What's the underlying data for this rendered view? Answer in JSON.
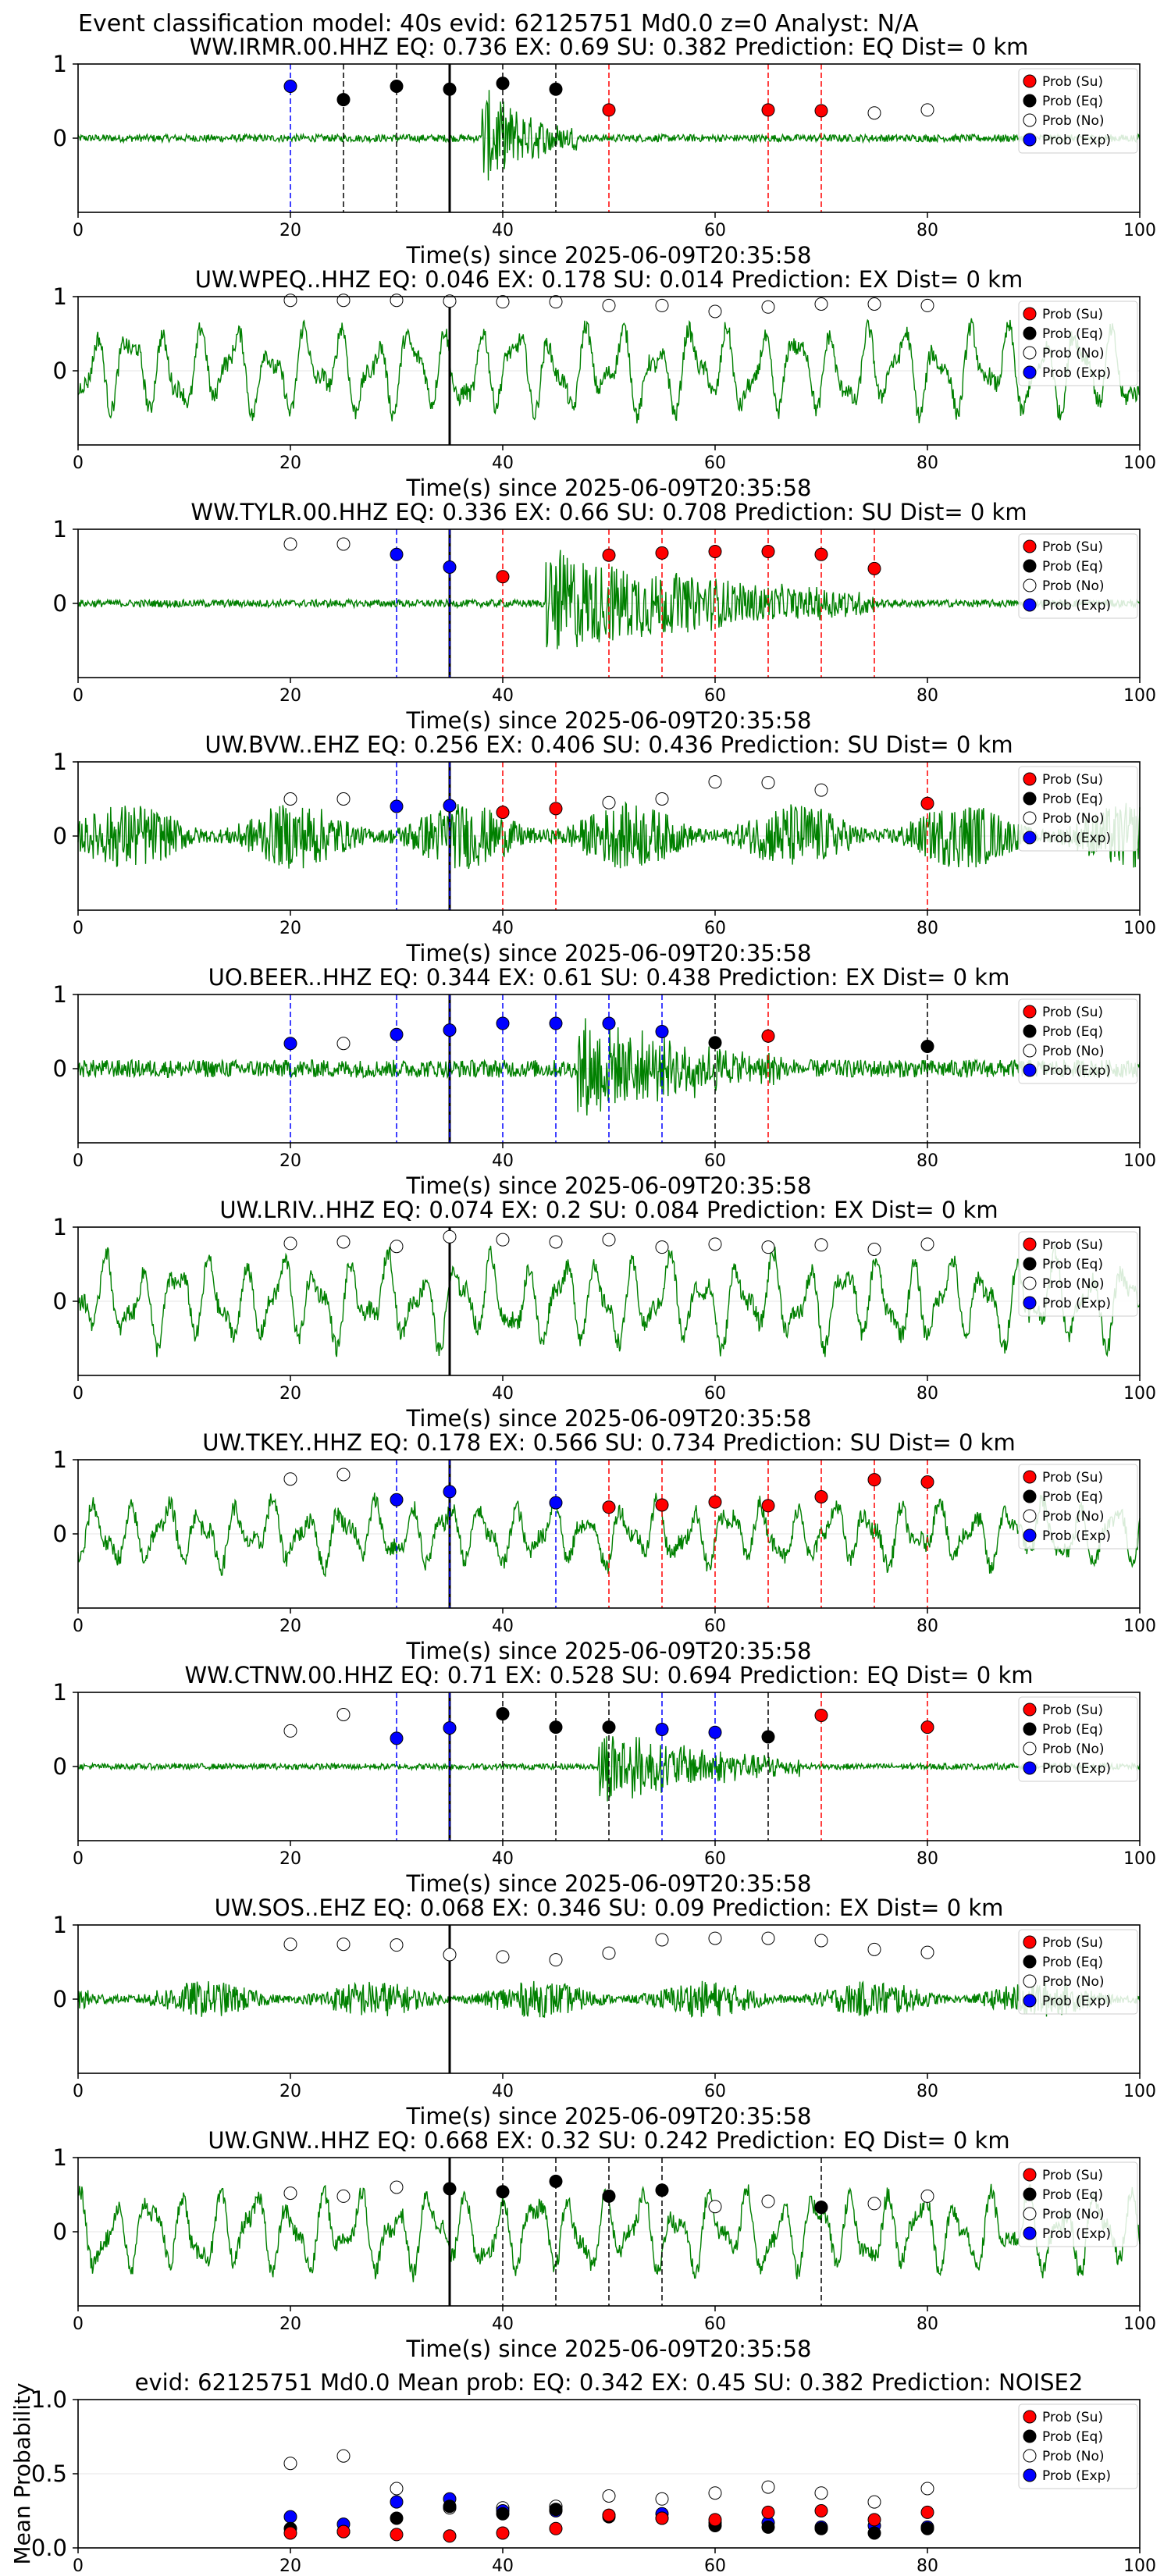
{
  "figure_title": "Event classification model: 40s evid: 62125751 Md0.0 z=0 Analyst: N/A",
  "legend_labels": [
    "Prob (Su)",
    "Prob (Eq)",
    "Prob (No)",
    "Prob (Exp)"
  ],
  "colors": {
    "su": "#ff0000",
    "eq": "#000000",
    "no": "#ffffff",
    "exp": "#0000ff",
    "trace": "#008000",
    "su_line": "#ff0000",
    "eq_line": "#000000",
    "exp_line": "#0000ff"
  },
  "chart_data": [
    {
      "type": "scatter",
      "station": "WW.IRMR.00.HHZ",
      "title": "WW.IRMR.00.HHZ   EQ: 0.736  EX: 0.69  SU: 0.382   Prediction: EQ    Dist= 0 km",
      "xlabel": "Time(s) since 2025-06-09T20:35:58",
      "xlim": [
        0,
        100
      ],
      "ylim": [
        -1,
        1
      ],
      "xticks": [
        0,
        20,
        40,
        60,
        80,
        100
      ],
      "yticks": [
        0,
        1
      ],
      "pick_time": 35,
      "trace": {
        "style": "burst",
        "amp": 0.05,
        "onset": 38,
        "burst_end": 47,
        "burst_amp": 0.7
      },
      "points": [
        {
          "t": 20,
          "c": "exp",
          "p": 0.7
        },
        {
          "t": 25,
          "c": "eq",
          "p": 0.52
        },
        {
          "t": 30,
          "c": "eq",
          "p": 0.7
        },
        {
          "t": 35,
          "c": "eq",
          "p": 0.66
        },
        {
          "t": 40,
          "c": "eq",
          "p": 0.74
        },
        {
          "t": 45,
          "c": "eq",
          "p": 0.66
        },
        {
          "t": 50,
          "c": "su",
          "p": 0.38
        },
        {
          "t": 65,
          "c": "su",
          "p": 0.38
        },
        {
          "t": 70,
          "c": "su",
          "p": 0.37
        },
        {
          "t": 75,
          "c": "no",
          "p": 0.34
        },
        {
          "t": 80,
          "c": "no",
          "p": 0.38
        }
      ]
    },
    {
      "type": "scatter",
      "station": "UW.WPEQ..HHZ",
      "title": "UW.WPEQ..HHZ   EQ: 0.046  EX: 0.178  SU: 0.014   Prediction: EX    Dist= 0 km",
      "xlabel": "Time(s) since 2025-06-09T20:35:58",
      "xlim": [
        0,
        100
      ],
      "ylim": [
        -1,
        1
      ],
      "xticks": [
        0,
        20,
        40,
        60,
        80,
        100
      ],
      "yticks": [
        0,
        1
      ],
      "pick_time": 35,
      "trace": {
        "style": "swell",
        "amp": 0.7
      },
      "points": [
        {
          "t": 20,
          "c": "no",
          "p": 0.95
        },
        {
          "t": 25,
          "c": "no",
          "p": 0.95
        },
        {
          "t": 30,
          "c": "no",
          "p": 0.95
        },
        {
          "t": 35,
          "c": "no",
          "p": 0.94
        },
        {
          "t": 40,
          "c": "no",
          "p": 0.93
        },
        {
          "t": 45,
          "c": "no",
          "p": 0.93
        },
        {
          "t": 50,
          "c": "no",
          "p": 0.88
        },
        {
          "t": 55,
          "c": "no",
          "p": 0.88
        },
        {
          "t": 60,
          "c": "no",
          "p": 0.8
        },
        {
          "t": 65,
          "c": "no",
          "p": 0.86
        },
        {
          "t": 70,
          "c": "no",
          "p": 0.9
        },
        {
          "t": 75,
          "c": "no",
          "p": 0.9
        },
        {
          "t": 80,
          "c": "no",
          "p": 0.88
        }
      ]
    },
    {
      "type": "scatter",
      "station": "WW.TYLR.00.HHZ",
      "title": "WW.TYLR.00.HHZ   EQ: 0.336  EX: 0.66  SU: 0.708   Prediction: SU    Dist= 0 km",
      "xlabel": "Time(s) since 2025-06-09T20:35:58",
      "xlim": [
        0,
        100
      ],
      "ylim": [
        -1,
        1
      ],
      "xticks": [
        0,
        20,
        40,
        60,
        80,
        100
      ],
      "yticks": [
        0,
        1
      ],
      "pick_time": 35,
      "trace": {
        "style": "burst",
        "amp": 0.05,
        "onset": 44,
        "burst_end": 75,
        "burst_amp": 0.75
      },
      "points": [
        {
          "t": 20,
          "c": "no",
          "p": 0.8
        },
        {
          "t": 25,
          "c": "no",
          "p": 0.8
        },
        {
          "t": 30,
          "c": "exp",
          "p": 0.66
        },
        {
          "t": 35,
          "c": "exp",
          "p": 0.49
        },
        {
          "t": 40,
          "c": "su",
          "p": 0.36
        },
        {
          "t": 50,
          "c": "su",
          "p": 0.65
        },
        {
          "t": 55,
          "c": "su",
          "p": 0.68
        },
        {
          "t": 60,
          "c": "su",
          "p": 0.7
        },
        {
          "t": 65,
          "c": "su",
          "p": 0.7
        },
        {
          "t": 70,
          "c": "su",
          "p": 0.66
        },
        {
          "t": 75,
          "c": "su",
          "p": 0.47
        }
      ]
    },
    {
      "type": "scatter",
      "station": "UW.BVW..EHZ",
      "title": "UW.BVW..EHZ   EQ: 0.256  EX: 0.406  SU: 0.436   Prediction: SU    Dist= 0 km",
      "xlabel": "Time(s) since 2025-06-09T20:35:58",
      "xlim": [
        0,
        100
      ],
      "ylim": [
        -1,
        1
      ],
      "xticks": [
        0,
        20,
        40,
        60,
        80,
        100
      ],
      "yticks": [
        0,
        1
      ],
      "pick_time": 35,
      "trace": {
        "style": "noise",
        "amp": 0.45
      },
      "points": [
        {
          "t": 20,
          "c": "no",
          "p": 0.5
        },
        {
          "t": 25,
          "c": "no",
          "p": 0.5
        },
        {
          "t": 30,
          "c": "exp",
          "p": 0.4
        },
        {
          "t": 35,
          "c": "exp",
          "p": 0.41
        },
        {
          "t": 40,
          "c": "su",
          "p": 0.32
        },
        {
          "t": 45,
          "c": "su",
          "p": 0.37
        },
        {
          "t": 50,
          "c": "no",
          "p": 0.45
        },
        {
          "t": 55,
          "c": "no",
          "p": 0.5
        },
        {
          "t": 60,
          "c": "no",
          "p": 0.73
        },
        {
          "t": 65,
          "c": "no",
          "p": 0.72
        },
        {
          "t": 70,
          "c": "no",
          "p": 0.62
        },
        {
          "t": 80,
          "c": "su",
          "p": 0.44
        }
      ]
    },
    {
      "type": "scatter",
      "station": "UO.BEER..HHZ",
      "title": "UO.BEER..HHZ   EQ: 0.344  EX: 0.61  SU: 0.438   Prediction: EX    Dist= 0 km",
      "xlabel": "Time(s) since 2025-06-09T20:35:58",
      "xlim": [
        0,
        100
      ],
      "ylim": [
        -1,
        1
      ],
      "xticks": [
        0,
        20,
        40,
        60,
        80,
        100
      ],
      "yticks": [
        0,
        1
      ],
      "pick_time": 35,
      "trace": {
        "style": "burst",
        "amp": 0.12,
        "onset": 47,
        "burst_end": 68,
        "burst_amp": 0.7
      },
      "points": [
        {
          "t": 20,
          "c": "exp",
          "p": 0.34
        },
        {
          "t": 25,
          "c": "no",
          "p": 0.34
        },
        {
          "t": 30,
          "c": "exp",
          "p": 0.46
        },
        {
          "t": 35,
          "c": "exp",
          "p": 0.52
        },
        {
          "t": 40,
          "c": "exp",
          "p": 0.61
        },
        {
          "t": 45,
          "c": "exp",
          "p": 0.61
        },
        {
          "t": 50,
          "c": "exp",
          "p": 0.61
        },
        {
          "t": 55,
          "c": "exp",
          "p": 0.5
        },
        {
          "t": 60,
          "c": "eq",
          "p": 0.35
        },
        {
          "t": 65,
          "c": "su",
          "p": 0.44
        },
        {
          "t": 80,
          "c": "eq",
          "p": 0.3
        }
      ]
    },
    {
      "type": "scatter",
      "station": "UW.LRIV..HHZ",
      "title": "UW.LRIV..HHZ   EQ: 0.074  EX: 0.2  SU: 0.084   Prediction: EX    Dist= 0 km",
      "xlabel": "Time(s) since 2025-06-09T20:35:58",
      "xlim": [
        0,
        100
      ],
      "ylim": [
        -1,
        1
      ],
      "xticks": [
        0,
        20,
        40,
        60,
        80,
        100
      ],
      "yticks": [
        0,
        1
      ],
      "pick_time": 35,
      "trace": {
        "style": "swell",
        "amp": 0.7
      },
      "points": [
        {
          "t": 20,
          "c": "no",
          "p": 0.78
        },
        {
          "t": 25,
          "c": "no",
          "p": 0.8
        },
        {
          "t": 30,
          "c": "no",
          "p": 0.74
        },
        {
          "t": 35,
          "c": "no",
          "p": 0.87
        },
        {
          "t": 40,
          "c": "no",
          "p": 0.83
        },
        {
          "t": 45,
          "c": "no",
          "p": 0.8
        },
        {
          "t": 50,
          "c": "no",
          "p": 0.83
        },
        {
          "t": 55,
          "c": "no",
          "p": 0.73
        },
        {
          "t": 60,
          "c": "no",
          "p": 0.77
        },
        {
          "t": 65,
          "c": "no",
          "p": 0.73
        },
        {
          "t": 70,
          "c": "no",
          "p": 0.76
        },
        {
          "t": 75,
          "c": "no",
          "p": 0.7
        },
        {
          "t": 80,
          "c": "no",
          "p": 0.77
        }
      ]
    },
    {
      "type": "scatter",
      "station": "UW.TKEY..HHZ",
      "title": "UW.TKEY..HHZ   EQ: 0.178  EX: 0.566  SU: 0.734   Prediction: SU    Dist= 0 km",
      "xlabel": "Time(s) since 2025-06-09T20:35:58",
      "xlim": [
        0,
        100
      ],
      "ylim": [
        -1,
        1
      ],
      "xticks": [
        0,
        20,
        40,
        60,
        80,
        100
      ],
      "yticks": [
        0,
        1
      ],
      "pick_time": 35,
      "trace": {
        "style": "swell",
        "amp": 0.5
      },
      "points": [
        {
          "t": 20,
          "c": "no",
          "p": 0.74
        },
        {
          "t": 25,
          "c": "no",
          "p": 0.8
        },
        {
          "t": 30,
          "c": "exp",
          "p": 0.46
        },
        {
          "t": 35,
          "c": "exp",
          "p": 0.57
        },
        {
          "t": 45,
          "c": "exp",
          "p": 0.42
        },
        {
          "t": 50,
          "c": "su",
          "p": 0.36
        },
        {
          "t": 55,
          "c": "su",
          "p": 0.39
        },
        {
          "t": 60,
          "c": "su",
          "p": 0.43
        },
        {
          "t": 65,
          "c": "su",
          "p": 0.38
        },
        {
          "t": 70,
          "c": "su",
          "p": 0.5
        },
        {
          "t": 75,
          "c": "su",
          "p": 0.73
        },
        {
          "t": 80,
          "c": "su",
          "p": 0.7
        }
      ]
    },
    {
      "type": "scatter",
      "station": "WW.CTNW.00.HHZ",
      "title": "WW.CTNW.00.HHZ   EQ: 0.71  EX: 0.528  SU: 0.694   Prediction: EQ    Dist= 0 km",
      "xlabel": "Time(s) since 2025-06-09T20:35:58",
      "xlim": [
        0,
        100
      ],
      "ylim": [
        -1,
        1
      ],
      "xticks": [
        0,
        20,
        40,
        60,
        80,
        100
      ],
      "yticks": [
        0,
        1
      ],
      "pick_time": 35,
      "trace": {
        "style": "burst",
        "amp": 0.04,
        "onset": 49,
        "burst_end": 68,
        "burst_amp": 0.55
      },
      "points": [
        {
          "t": 20,
          "c": "no",
          "p": 0.48
        },
        {
          "t": 25,
          "c": "no",
          "p": 0.7
        },
        {
          "t": 30,
          "c": "exp",
          "p": 0.38
        },
        {
          "t": 35,
          "c": "exp",
          "p": 0.52
        },
        {
          "t": 40,
          "c": "eq",
          "p": 0.71
        },
        {
          "t": 45,
          "c": "eq",
          "p": 0.53
        },
        {
          "t": 50,
          "c": "eq",
          "p": 0.53
        },
        {
          "t": 55,
          "c": "exp",
          "p": 0.5
        },
        {
          "t": 60,
          "c": "exp",
          "p": 0.46
        },
        {
          "t": 65,
          "c": "eq",
          "p": 0.4
        },
        {
          "t": 70,
          "c": "su",
          "p": 0.69
        },
        {
          "t": 80,
          "c": "su",
          "p": 0.53
        }
      ]
    },
    {
      "type": "scatter",
      "station": "UW.SOS..EHZ",
      "title": "UW.SOS..EHZ   EQ: 0.068  EX: 0.346  SU: 0.09   Prediction: EX    Dist= 0 km",
      "xlabel": "Time(s) since 2025-06-09T20:35:58",
      "xlim": [
        0,
        100
      ],
      "ylim": [
        -1,
        1
      ],
      "xticks": [
        0,
        20,
        40,
        60,
        80,
        100
      ],
      "yticks": [
        0,
        1
      ],
      "pick_time": 35,
      "trace": {
        "style": "noise",
        "amp": 0.25
      },
      "points": [
        {
          "t": 20,
          "c": "no",
          "p": 0.74
        },
        {
          "t": 25,
          "c": "no",
          "p": 0.74
        },
        {
          "t": 30,
          "c": "no",
          "p": 0.73
        },
        {
          "t": 35,
          "c": "no",
          "p": 0.6
        },
        {
          "t": 40,
          "c": "no",
          "p": 0.57
        },
        {
          "t": 45,
          "c": "no",
          "p": 0.53
        },
        {
          "t": 50,
          "c": "no",
          "p": 0.62
        },
        {
          "t": 55,
          "c": "no",
          "p": 0.8
        },
        {
          "t": 60,
          "c": "no",
          "p": 0.82
        },
        {
          "t": 65,
          "c": "no",
          "p": 0.82
        },
        {
          "t": 70,
          "c": "no",
          "p": 0.79
        },
        {
          "t": 75,
          "c": "no",
          "p": 0.67
        },
        {
          "t": 80,
          "c": "no",
          "p": 0.63
        }
      ]
    },
    {
      "type": "scatter",
      "station": "UW.GNW..HHZ",
      "title": "UW.GNW..HHZ   EQ: 0.668  EX: 0.32  SU: 0.242   Prediction: EQ    Dist= 0 km",
      "xlabel": "Time(s) since 2025-06-09T20:35:58",
      "xlim": [
        0,
        100
      ],
      "ylim": [
        -1,
        1
      ],
      "xticks": [
        0,
        20,
        40,
        60,
        80,
        100
      ],
      "yticks": [
        0,
        1
      ],
      "pick_time": 35,
      "trace": {
        "style": "swell",
        "amp": 0.65
      },
      "points": [
        {
          "t": 20,
          "c": "no",
          "p": 0.52
        },
        {
          "t": 25,
          "c": "no",
          "p": 0.48
        },
        {
          "t": 30,
          "c": "no",
          "p": 0.6
        },
        {
          "t": 35,
          "c": "eq",
          "p": 0.58
        },
        {
          "t": 40,
          "c": "eq",
          "p": 0.54
        },
        {
          "t": 45,
          "c": "eq",
          "p": 0.68
        },
        {
          "t": 50,
          "c": "eq",
          "p": 0.48
        },
        {
          "t": 55,
          "c": "eq",
          "p": 0.56
        },
        {
          "t": 60,
          "c": "no",
          "p": 0.34
        },
        {
          "t": 65,
          "c": "no",
          "p": 0.41
        },
        {
          "t": 70,
          "c": "eq",
          "p": 0.33
        },
        {
          "t": 75,
          "c": "no",
          "p": 0.38
        },
        {
          "t": 80,
          "c": "no",
          "p": 0.48
        }
      ]
    },
    {
      "type": "scatter",
      "station": "mean",
      "title": "evid: 62125751  Md0.0   Mean prob:    EQ: 0.342  EX: 0.45  SU: 0.382   Prediction: NOISE2",
      "ylabel": "Mean Probability",
      "xlim": [
        0,
        100
      ],
      "ylim": [
        0,
        1
      ],
      "xticks": [
        0,
        20,
        40,
        60,
        80,
        100
      ],
      "yticks": [
        0.0,
        0.5,
        1.0
      ],
      "series": [
        {
          "c": "no",
          "t": [
            20,
            25,
            30,
            35,
            40,
            45,
            50,
            55,
            60,
            65,
            70,
            75,
            80
          ],
          "p": [
            0.57,
            0.62,
            0.4,
            0.27,
            0.27,
            0.28,
            0.35,
            0.33,
            0.37,
            0.41,
            0.37,
            0.31,
            0.4
          ]
        },
        {
          "c": "exp",
          "t": [
            20,
            25,
            30,
            35,
            40,
            45,
            50,
            55,
            60,
            65,
            70,
            75,
            80
          ],
          "p": [
            0.21,
            0.16,
            0.31,
            0.33,
            0.25,
            0.25,
            0.22,
            0.23,
            0.17,
            0.17,
            0.14,
            0.15,
            0.14
          ]
        },
        {
          "c": "eq",
          "t": [
            20,
            25,
            30,
            35,
            40,
            45,
            50,
            55,
            60,
            65,
            70,
            75,
            80
          ],
          "p": [
            0.13,
            0.11,
            0.2,
            0.28,
            0.23,
            0.26,
            0.21,
            0.2,
            0.15,
            0.14,
            0.13,
            0.1,
            0.13
          ]
        },
        {
          "c": "su",
          "t": [
            20,
            25,
            30,
            35,
            40,
            45,
            50,
            55,
            60,
            65,
            70,
            75,
            80
          ],
          "p": [
            0.1,
            0.11,
            0.09,
            0.08,
            0.1,
            0.13,
            0.22,
            0.2,
            0.19,
            0.24,
            0.25,
            0.19,
            0.24
          ]
        }
      ]
    }
  ]
}
